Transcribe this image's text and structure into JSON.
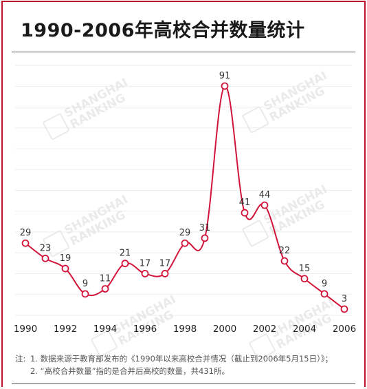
{
  "title": "1990-2006年高校合并数量统计",
  "watermark": {
    "line1": "SHANGHAI",
    "line2": "RANKING"
  },
  "colors": {
    "line": "#d2143a",
    "frame": "#c0102a",
    "grid": "#e6e6e6"
  },
  "chart_data": {
    "type": "line",
    "title": "1990-2006年高校合并数量统计",
    "xlabel": "",
    "ylabel": "",
    "x": [
      1990,
      1991,
      1992,
      1993,
      1994,
      1995,
      1996,
      1997,
      1998,
      1999,
      2000,
      2001,
      2002,
      2003,
      2004,
      2005,
      2006
    ],
    "values": [
      29,
      23,
      19,
      9,
      11,
      21,
      17,
      17,
      29,
      31,
      91,
      41,
      44,
      22,
      15,
      9,
      3
    ],
    "x_tick_labels": [
      "1990",
      "1992",
      "1994",
      "1996",
      "1998",
      "2000",
      "2002",
      "2004",
      "2006"
    ],
    "ylim": [
      0,
      100
    ],
    "grid": true,
    "smooth": true
  },
  "notes": {
    "prefix": "注:",
    "items": [
      "1.  数据来源于教育部发布的《1990年以来高校合并情况（截止到2006年5月15日）》；",
      "2.  “高校合并数量”指的是合并后高校的数量，共431所。"
    ]
  }
}
